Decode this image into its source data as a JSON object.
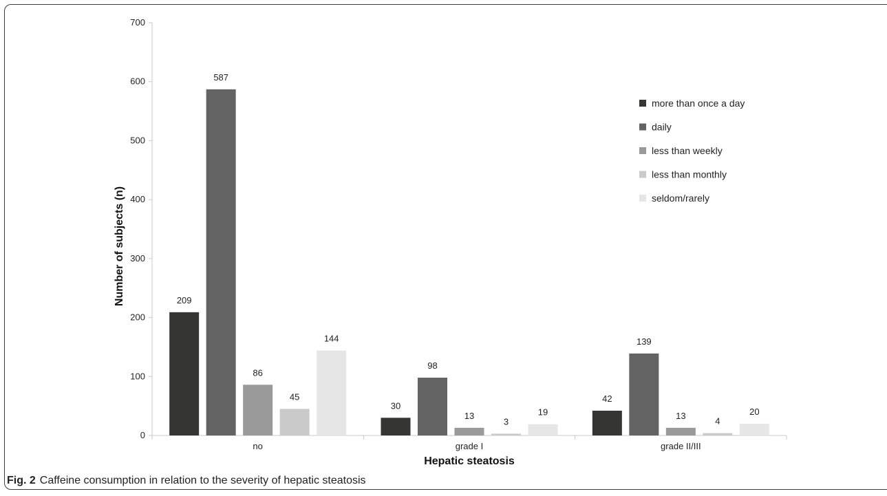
{
  "chart_data": {
    "type": "bar",
    "xlabel": "Hepatic steatosis",
    "ylabel": "Number of subjects (n)",
    "ylim": [
      0,
      700
    ],
    "yticks": [
      0,
      100,
      200,
      300,
      400,
      500,
      600,
      700
    ],
    "categories": [
      "no",
      "grade I",
      "grade II/III"
    ],
    "series": [
      {
        "name": "more than once a day",
        "color": "#353533",
        "values": [
          209,
          30,
          42
        ]
      },
      {
        "name": "daily",
        "color": "#636363",
        "values": [
          587,
          98,
          139
        ]
      },
      {
        "name": "less than weekly",
        "color": "#9a9a9a",
        "values": [
          86,
          13,
          13
        ]
      },
      {
        "name": "less than monthly",
        "color": "#cacaca",
        "values": [
          45,
          3,
          4
        ]
      },
      {
        "name": "seldom/rarely",
        "color": "#e6e6e6",
        "values": [
          144,
          19,
          20
        ]
      }
    ],
    "legend_position": "right",
    "grid": false
  },
  "caption": {
    "label": "Fig. 2",
    "text": "Caffeine consumption in relation to the severity of hepatic steatosis"
  }
}
